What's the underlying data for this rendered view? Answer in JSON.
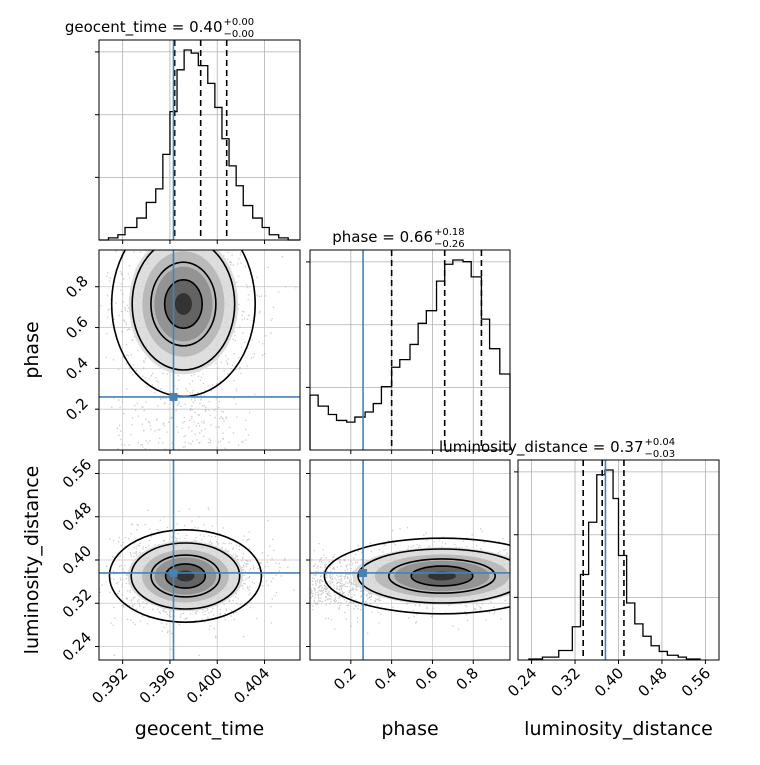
{
  "chart_data": {
    "type": "corner",
    "parameters": [
      "geocent_time",
      "phase",
      "luminosity_distance"
    ],
    "truths": {
      "geocent_time": 0.3963,
      "phase": 0.26,
      "luminosity_distance": 0.376
    },
    "titles": {
      "geocent_time": {
        "main": "geocent_time = 0.40",
        "plus": "+0.00",
        "minus": "−0.00"
      },
      "phase": {
        "main": "phase = 0.66",
        "plus": "+0.18",
        "minus": "−0.26"
      },
      "luminosity_distance": {
        "main": "luminosity_distance = 0.37",
        "plus": "+0.04",
        "minus": "−0.03"
      }
    },
    "ranges": {
      "geocent_time": [
        0.39,
        0.407
      ],
      "phase": [
        0.0,
        0.98
      ],
      "luminosity_distance": [
        0.215,
        0.585
      ]
    },
    "ticks": {
      "geocent_time": {
        "values": [
          0.392,
          0.396,
          0.4,
          0.404
        ],
        "labels": [
          "0.392",
          "0.396",
          "0.400",
          "0.404"
        ]
      },
      "phase": {
        "values": [
          0.2,
          0.4,
          0.6,
          0.8
        ],
        "labels": [
          "0.2",
          "0.4",
          "0.6",
          "0.8"
        ]
      },
      "luminosity_distance": {
        "values": [
          0.24,
          0.32,
          0.4,
          0.48,
          0.56
        ],
        "labels": [
          "0.24",
          "0.32",
          "0.40",
          "0.48",
          "0.56"
        ]
      }
    },
    "quantile_lines": {
      "geocent_time": [
        0.3964,
        0.3986,
        0.4008
      ],
      "phase": [
        0.4,
        0.66,
        0.84
      ],
      "luminosity_distance": [
        0.335,
        0.37,
        0.41
      ]
    },
    "histograms": {
      "geocent_time": {
        "edges": [
          0.39,
          0.3908,
          0.3916,
          0.3922,
          0.3932,
          0.394,
          0.3948,
          0.3954,
          0.396,
          0.3966,
          0.3972,
          0.3978,
          0.3984,
          0.3992,
          0.3998,
          0.4004,
          0.401,
          0.4016,
          0.4022,
          0.403,
          0.4038,
          0.4044,
          0.4052,
          0.406,
          0.407
        ],
        "counts": [
          0,
          2,
          5,
          12,
          21,
          36,
          49,
          82,
          123,
          163,
          182,
          179,
          167,
          150,
          127,
          97,
          71,
          52,
          33,
          21,
          12,
          5,
          2,
          0
        ]
      },
      "phase": {
        "edges": [
          0.0,
          0.04,
          0.09,
          0.13,
          0.18,
          0.22,
          0.27,
          0.31,
          0.35,
          0.4,
          0.44,
          0.49,
          0.53,
          0.57,
          0.62,
          0.66,
          0.7,
          0.75,
          0.79,
          0.84,
          0.88,
          0.93,
          0.98
        ],
        "counts": [
          0.65,
          0.52,
          0.42,
          0.35,
          0.33,
          0.39,
          0.45,
          0.55,
          0.75,
          0.98,
          1.07,
          1.25,
          1.5,
          1.65,
          2.0,
          2.2,
          2.25,
          2.23,
          2.05,
          1.55,
          1.2,
          0.9
        ]
      },
      "luminosity_distance": {
        "edges": [
          0.235,
          0.26,
          0.29,
          0.315,
          0.33,
          0.345,
          0.36,
          0.375,
          0.39,
          0.4,
          0.415,
          0.43,
          0.445,
          0.46,
          0.475,
          0.49,
          0.51,
          0.525,
          0.55
        ],
        "counts": [
          1,
          3,
          10,
          35,
          90,
          145,
          195,
          200,
          170,
          110,
          60,
          38,
          25,
          15,
          9,
          5,
          3,
          1
        ]
      }
    },
    "series": [
      {
        "name": "samples",
        "values": []
      }
    ]
  }
}
